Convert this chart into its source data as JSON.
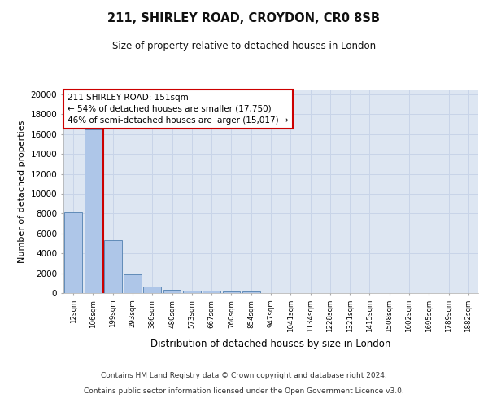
{
  "title_line1": "211, SHIRLEY ROAD, CROYDON, CR0 8SB",
  "title_line2": "Size of property relative to detached houses in London",
  "xlabel": "Distribution of detached houses by size in London",
  "ylabel": "Number of detached properties",
  "categories": [
    "12sqm",
    "106sqm",
    "199sqm",
    "293sqm",
    "386sqm",
    "480sqm",
    "573sqm",
    "667sqm",
    "760sqm",
    "854sqm",
    "947sqm",
    "1041sqm",
    "1134sqm",
    "1228sqm",
    "1321sqm",
    "1415sqm",
    "1508sqm",
    "1602sqm",
    "1695sqm",
    "1789sqm",
    "1882sqm"
  ],
  "bar_heights": [
    8100,
    16500,
    5300,
    1850,
    680,
    360,
    270,
    210,
    180,
    170,
    0,
    0,
    0,
    0,
    0,
    0,
    0,
    0,
    0,
    0,
    0
  ],
  "bar_color": "#aec6e8",
  "bar_edge_color": "#5080b0",
  "annotation_title": "211 SHIRLEY ROAD: 151sqm",
  "annotation_line1": "← 54% of detached houses are smaller (17,750)",
  "annotation_line2": "46% of semi-detached houses are larger (15,017) →",
  "vline_color": "#cc0000",
  "annotation_box_color": "#ffffff",
  "annotation_box_edge": "#cc0000",
  "footer_line1": "Contains HM Land Registry data © Crown copyright and database right 2024.",
  "footer_line2": "Contains public sector information licensed under the Open Government Licence v3.0.",
  "ylim": [
    0,
    20500
  ],
  "yticks": [
    0,
    2000,
    4000,
    6000,
    8000,
    10000,
    12000,
    14000,
    16000,
    18000,
    20000
  ],
  "grid_color": "#c8d4e8",
  "bg_color": "#dde6f2"
}
